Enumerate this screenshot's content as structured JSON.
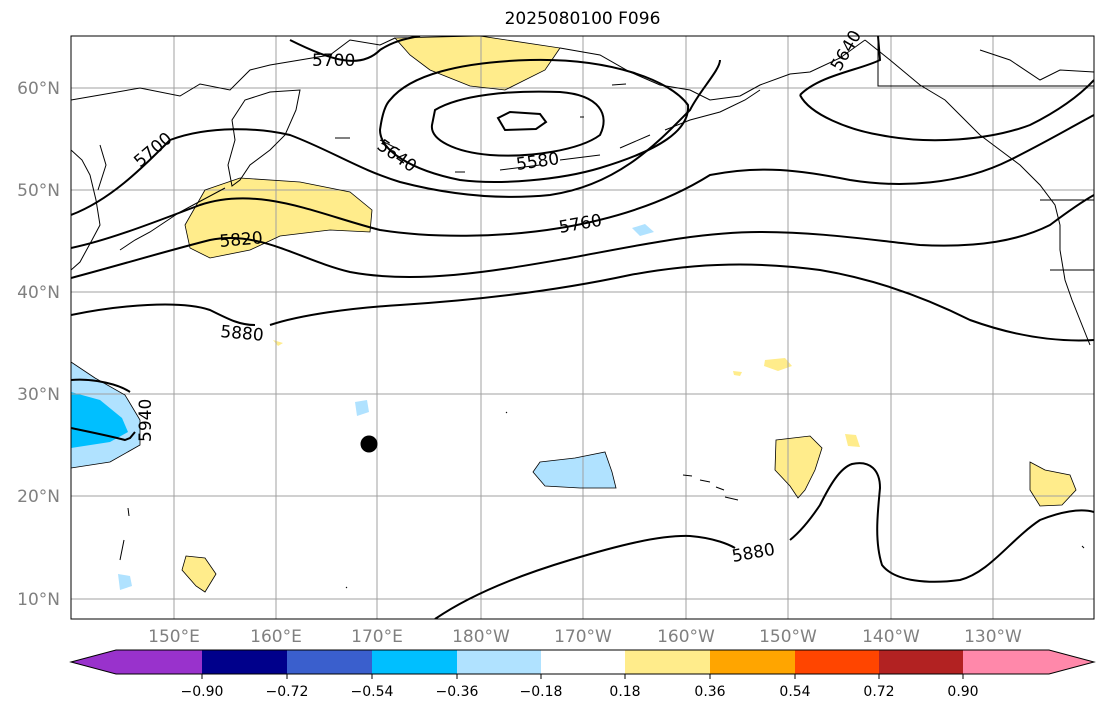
{
  "title": "2025080100 F096",
  "lat_labels": [
    "10°N",
    "20°N",
    "30°N",
    "40°N",
    "50°N",
    "60°N"
  ],
  "lon_labels": [
    "150°E",
    "160°E",
    "170°E",
    "180°W",
    "170°W",
    "160°W",
    "150°W",
    "140°W",
    "130°W"
  ],
  "contour_labels": [
    "5700",
    "5640",
    "5700",
    "5640",
    "5580",
    "5760",
    "5820",
    "5880",
    "5940",
    "5880"
  ],
  "colorbar": {
    "ticks": [
      "−0.90",
      "−0.72",
      "−0.54",
      "−0.36",
      "−0.18",
      "0.18",
      "0.36",
      "0.54",
      "0.72",
      "0.90"
    ],
    "colors": [
      "#9932CC",
      "#00008B",
      "#3A5FCD",
      "#00BFFF",
      "#B0E2FF",
      "#FFFFFF",
      "#FFEC8B",
      "#FFA500",
      "#FF4500",
      "#B22222",
      "#FF88AA"
    ]
  },
  "marker": "storm-position-dot"
}
